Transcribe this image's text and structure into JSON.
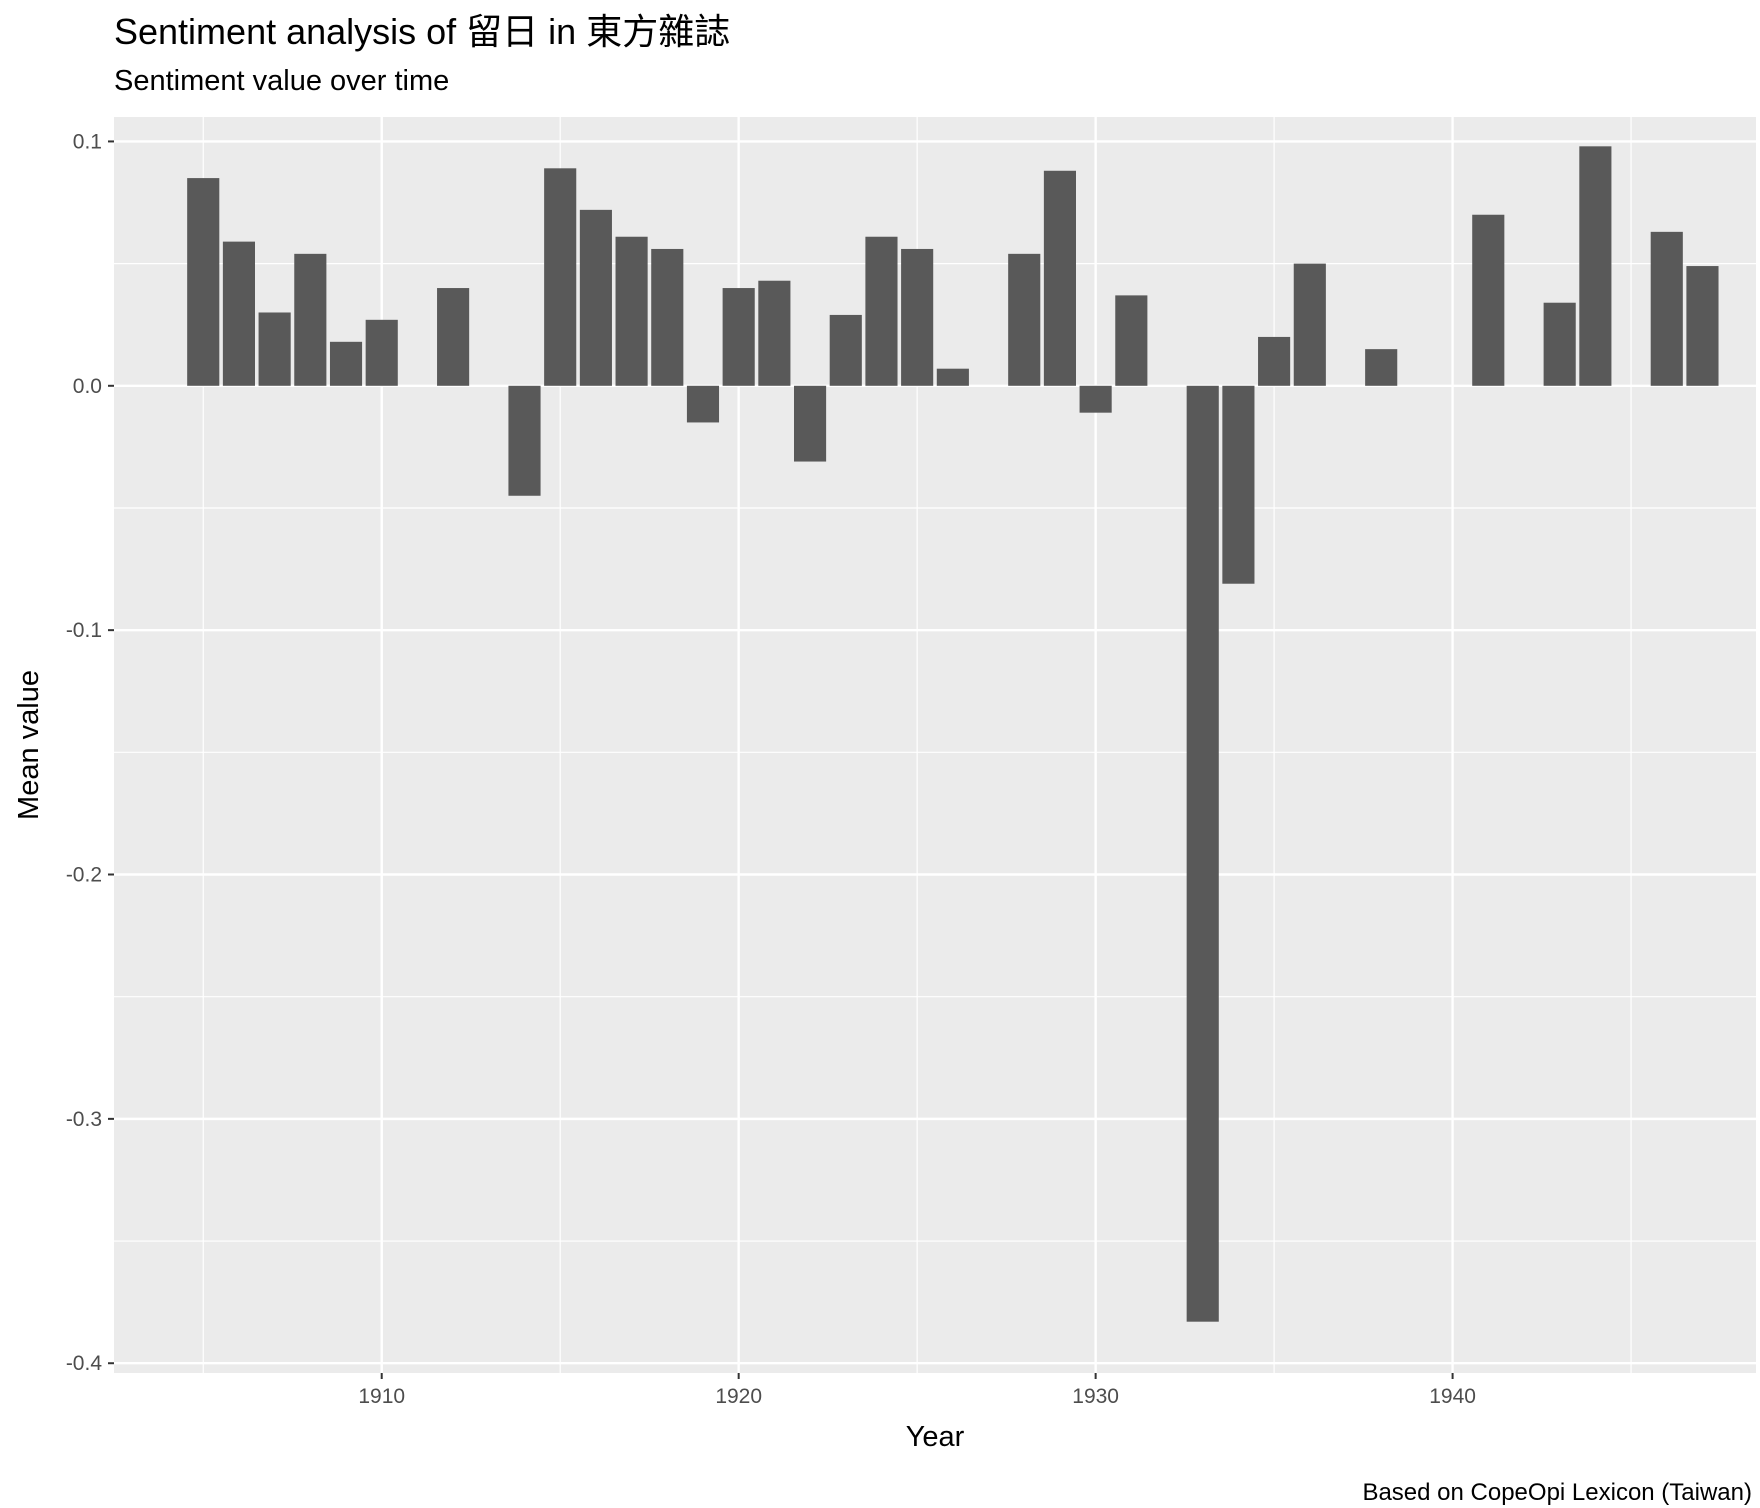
{
  "chart_data": {
    "type": "bar",
    "title": "Sentiment analysis of 留日 in 東方雜誌",
    "subtitle": "Sentiment value over time",
    "caption": "Based on CopeOpi Lexicon (Taiwan)",
    "xlabel": "Year",
    "ylabel": "Mean value",
    "xlim": [
      1902.5,
      1948.5
    ],
    "ylim": [
      -0.404,
      0.11
    ],
    "x_ticks": [
      1910,
      1920,
      1930,
      1940
    ],
    "x_tick_labels": [
      "1910",
      "1920",
      "1930",
      "1940"
    ],
    "x_minor": [
      1905,
      1915,
      1925,
      1935,
      1945
    ],
    "y_ticks": [
      -0.4,
      -0.3,
      -0.2,
      -0.1,
      0.0,
      0.1
    ],
    "y_tick_labels": [
      "-0.4",
      "-0.3",
      "-0.2",
      "-0.1",
      "0.0",
      "0.1"
    ],
    "y_minor": [
      -0.35,
      -0.25,
      -0.15,
      -0.05,
      0.05
    ],
    "grid": true,
    "legend": "none",
    "colors": {
      "bar": "#595959",
      "panel": "#ebebeb",
      "grid": "#ffffff"
    },
    "x": [
      1905,
      1906,
      1907,
      1908,
      1909,
      1910,
      1912,
      1914,
      1915,
      1916,
      1917,
      1918,
      1919,
      1920,
      1921,
      1922,
      1923,
      1924,
      1925,
      1926,
      1928,
      1929,
      1930,
      1931,
      1933,
      1934,
      1935,
      1936,
      1938,
      1941,
      1943,
      1944,
      1946,
      1947
    ],
    "values": [
      0.085,
      0.059,
      0.03,
      0.054,
      0.018,
      0.027,
      0.04,
      -0.045,
      0.089,
      0.072,
      0.061,
      0.056,
      -0.015,
      0.04,
      0.043,
      -0.031,
      0.029,
      0.061,
      0.056,
      0.007,
      0.054,
      0.088,
      -0.011,
      0.037,
      -0.383,
      -0.081,
      0.02,
      0.05,
      0.015,
      0.07,
      0.034,
      0.098,
      0.063,
      0.049
    ]
  }
}
